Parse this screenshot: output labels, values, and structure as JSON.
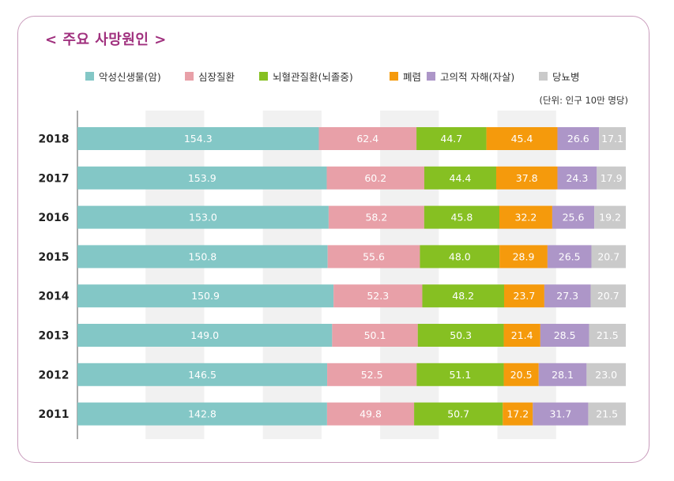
{
  "chart_data": {
    "type": "bar",
    "orientation": "horizontal",
    "stacked": true,
    "title": "< 주요 사망원인 >",
    "unit_note": "(단위: 인구 10만 명당)",
    "legend_position": "top",
    "categories": [
      "2018",
      "2017",
      "2016",
      "2015",
      "2014",
      "2013",
      "2012",
      "2011"
    ],
    "series": [
      {
        "name": "악성신생물(암)",
        "color": "#83c7c6",
        "values": [
          154.3,
          153.9,
          153.0,
          150.8,
          150.9,
          149.0,
          146.5,
          142.8
        ],
        "labels": [
          "154.3",
          "153.9",
          "153.0",
          "150.8",
          "150.9",
          "149.0",
          "146.5",
          "142.8"
        ]
      },
      {
        "name": "심장질환",
        "color": "#e8a0a8",
        "values": [
          62.4,
          60.2,
          58.2,
          55.6,
          52.3,
          50.1,
          52.5,
          49.8
        ],
        "labels": [
          "62.4",
          "60.2",
          "58.2",
          "55.6",
          "52.3",
          "50.1",
          "52.5",
          "49.8"
        ]
      },
      {
        "name": "뇌혈관질환(뇌졸중)",
        "color": "#86c022",
        "values": [
          44.7,
          44.4,
          45.8,
          48.0,
          48.2,
          50.3,
          51.1,
          50.7
        ],
        "labels": [
          "44.7",
          "44.4",
          "45.8",
          "48.0",
          "48.2",
          "50.3",
          "51.1",
          "50.7"
        ]
      },
      {
        "name": "폐렴",
        "color": "#f59a0c",
        "values": [
          45.4,
          37.8,
          32.2,
          28.9,
          23.7,
          21.4,
          20.5,
          17.2
        ],
        "labels": [
          "45.4",
          "37.8",
          "32.2",
          "28.9",
          "23.7",
          "21.4",
          "20.5",
          "17.2"
        ]
      },
      {
        "name": "고의적 자해(자살)",
        "color": "#ad96c8",
        "values": [
          26.6,
          24.3,
          25.6,
          26.5,
          27.3,
          28.5,
          28.1,
          31.7
        ],
        "labels": [
          "26.6",
          "24.3",
          "25.6",
          "26.5",
          "27.3",
          "28.5",
          "28.1",
          "31.7"
        ]
      },
      {
        "name": "당뇨병",
        "color": "#cacaca",
        "values": [
          17.1,
          17.9,
          19.2,
          20.7,
          20.7,
          21.5,
          23.0,
          21.5
        ],
        "labels": [
          "17.1",
          "17.9",
          "19.2",
          "20.7",
          "20.7",
          "21.5",
          "23.0",
          "21.5"
        ]
      }
    ]
  }
}
